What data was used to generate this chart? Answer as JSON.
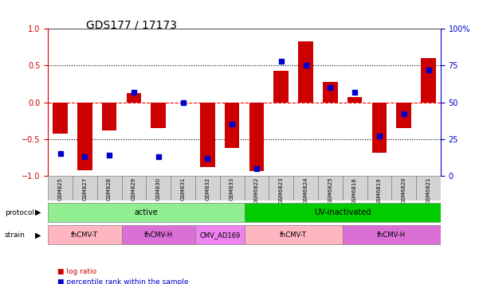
{
  "title": "GDS177 / 17173",
  "samples": [
    "GSM825",
    "GSM827",
    "GSM828",
    "GSM829",
    "GSM830",
    "GSM831",
    "GSM832",
    "GSM833",
    "GSM6822",
    "GSM6823",
    "GSM6824",
    "GSM6825",
    "GSM6818",
    "GSM6819",
    "GSM6820",
    "GSM6821"
  ],
  "log_ratio": [
    -0.42,
    -0.92,
    -0.38,
    0.12,
    -0.35,
    0.0,
    -0.88,
    -0.62,
    -0.93,
    0.43,
    0.82,
    0.27,
    0.07,
    -0.68,
    -0.35,
    0.6
  ],
  "percentile": [
    15,
    13,
    14,
    57,
    13,
    50,
    12,
    35,
    5,
    78,
    75,
    60,
    57,
    27,
    42,
    72
  ],
  "protocol_groups": [
    {
      "label": "active",
      "start": 0,
      "end": 7,
      "color": "#90EE90"
    },
    {
      "label": "UV-inactivated",
      "start": 8,
      "end": 15,
      "color": "#00CC00"
    }
  ],
  "strain_groups": [
    {
      "label": "fhCMV-T",
      "start": 0,
      "end": 2,
      "color": "#FFB6C1"
    },
    {
      "label": "fhCMV-H",
      "start": 3,
      "end": 5,
      "color": "#DA70D6"
    },
    {
      "label": "CMV_AD169",
      "start": 6,
      "end": 7,
      "color": "#EE82EE"
    },
    {
      "label": "fhCMV-T",
      "start": 8,
      "end": 11,
      "color": "#FFB6C1"
    },
    {
      "label": "fhCMV-H",
      "start": 12,
      "end": 15,
      "color": "#DA70D6"
    }
  ],
  "ylim": [
    -1.0,
    1.0
  ],
  "y2lim": [
    0,
    100
  ],
  "y_ticks_left": [
    -1,
    -0.5,
    0,
    0.5,
    1
  ],
  "y_ticks_right": [
    0,
    25,
    50,
    75,
    100
  ],
  "bar_color": "#CC0000",
  "dot_color": "#0000CC",
  "zero_line_color": "#FF0000",
  "grid_color": "#000000",
  "bg_color": "#FFFFFF"
}
